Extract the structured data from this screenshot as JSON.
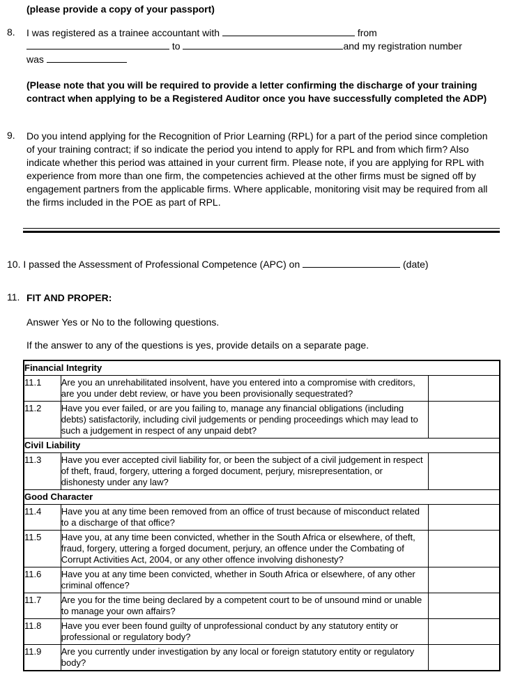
{
  "meta": {
    "text_color": "#000000",
    "background": "#ffffff"
  },
  "passport_note": "(please provide a copy of your passport)",
  "item8": {
    "number": "8.",
    "line1_pre": "I was registered as a trainee accountant with",
    "line1_post": "from",
    "line2_mid": "to",
    "line2_post": "and my registration number",
    "line3_pre": "was",
    "note": "(Please note that you will be required to provide a letter confirming the discharge of your training contract when applying to be a Registered Auditor once you have successfully completed the ADP)"
  },
  "item9": {
    "number": "9.",
    "text": "Do you intend applying for the Recognition of Prior Learning (RPL) for a part of the period since completion of your training contract; if so indicate the period you intend to apply for RPL and from which firm? Also indicate whether this period was attained in your current firm. Please note, if you are applying for RPL with experience from more than one firm, the competencies achieved at the other firms must be signed off by engagement partners from the applicable firms. Where applicable, monitoring visit may be required from all the firms included in the POE as part of RPL."
  },
  "item10": {
    "number": "10.",
    "pre": "I passed the Assessment of Professional Competence (APC) on",
    "post": "(date)"
  },
  "item11": {
    "number": "11.",
    "title": "FIT AND PROPER:",
    "instruction1": "Answer Yes or No to the following questions.",
    "instruction2": "If the answer to any of the questions is yes, provide details on a separate page."
  },
  "table": {
    "rows": [
      {
        "type": "section",
        "label": "Financial Integrity"
      },
      {
        "type": "question",
        "num": "11.1",
        "text": "Are you an unrehabilitated insolvent, have you entered into a compromise with creditors, are you under debt review, or have you been provisionally sequestrated?",
        "answer": ""
      },
      {
        "type": "question",
        "num": "11.2",
        "text": "Have you ever failed, or are you failing to, manage any financial obligations (including debts) satisfactorily, including civil judgements or pending proceedings which may lead to such a judgement in respect of any unpaid debt?",
        "answer": ""
      },
      {
        "type": "section",
        "label": "Civil Liability"
      },
      {
        "type": "question",
        "num": "11.3",
        "text": "Have you ever accepted civil liability for, or been the subject of a civil judgement in respect of theft, fraud, forgery, uttering a forged document, perjury, misrepresentation, or dishonesty under any law?",
        "answer": ""
      },
      {
        "type": "section",
        "label": "Good Character"
      },
      {
        "type": "question",
        "num": "11.4",
        "text": "Have you at any time been removed from an office of trust because of misconduct related to a discharge of that office?",
        "answer": ""
      },
      {
        "type": "question",
        "num": "11.5",
        "text": "Have you, at any time been convicted, whether in the South Africa or elsewhere, of theft, fraud, forgery, uttering a forged document, perjury, an offence under the Combating of Corrupt Activities Act, 2004, or any other offence involving dishonesty?",
        "answer": ""
      },
      {
        "type": "question",
        "num": "11.6",
        "text": "Have you at any time been convicted, whether in South Africa or elsewhere, of any other criminal offence?",
        "answer": ""
      },
      {
        "type": "question",
        "num": "11.7",
        "text": "Are you for the time being declared by a competent court to be of unsound mind or unable to manage your own affairs?",
        "answer": ""
      },
      {
        "type": "question",
        "num": "11.8",
        "text": "Have you ever been found guilty of unprofessional conduct by any statutory entity or professional or regulatory body?",
        "answer": ""
      },
      {
        "type": "question",
        "num": "11.9",
        "text": "Are you currently under investigation by any local or foreign statutory entity or regulatory body?",
        "answer": ""
      }
    ]
  }
}
